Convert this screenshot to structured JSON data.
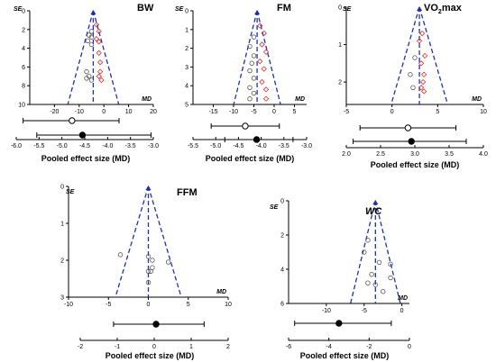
{
  "colors": {
    "funnel": "#1f2fb0",
    "axis": "#000000",
    "black_point": "#555555",
    "red_point": "#e03030"
  },
  "icons": {
    "studies_black": "circle-marker",
    "studies_red": "diamond-marker",
    "pooled": "filled-circle",
    "ci": "interval-bar"
  },
  "chart_data": [
    {
      "id": "bw",
      "type": "scatter",
      "title": "BW",
      "ylabel": "SE",
      "xlabel": "MD",
      "xlim": [
        -30,
        20
      ],
      "ylim": [
        0,
        10
      ],
      "xticks": [
        -20,
        -10,
        0,
        10,
        20
      ],
      "xtick_labels": [
        "-20",
        "-10",
        "0",
        "10",
        "20"
      ],
      "yticks": [
        0,
        2,
        4,
        6,
        8,
        10
      ],
      "ytick_labels": [
        "0",
        "2",
        "4",
        "6",
        "8",
        "10"
      ],
      "pooled_md": -4.3,
      "points_black": [
        [
          -6,
          2.6
        ],
        [
          -5,
          2.8
        ],
        [
          -6.5,
          3.2
        ],
        [
          -5,
          3.6
        ],
        [
          -7,
          6.5
        ],
        [
          -6,
          7.0
        ],
        [
          -7,
          7.2
        ],
        [
          -5,
          7.4
        ],
        [
          -5,
          2.2
        ]
      ],
      "points_red": [
        [
          -3,
          1.5
        ],
        [
          -2,
          2.2
        ],
        [
          -3,
          3.0
        ],
        [
          -2,
          3.3
        ],
        [
          -2,
          4.5
        ],
        [
          -1.5,
          5.5
        ],
        [
          -1.5,
          6.5
        ],
        [
          -2,
          7.0
        ],
        [
          -1,
          7.4
        ]
      ],
      "forest": {
        "axis_label": "Pooled effect size  (MD)",
        "xlim": [
          -6.0,
          -3.0
        ],
        "ticks": [
          -6.0,
          -5.5,
          -5.0,
          -4.5,
          -4.0,
          -3.5,
          -3.0
        ],
        "tick_labels": [
          "-6.0",
          "-5.5",
          "-5.0",
          "-4.5",
          "-4.0",
          "-3.5",
          "-3.0"
        ],
        "open": {
          "est": -4.78,
          "lo": -5.85,
          "hi": -3.75
        },
        "filled": {
          "est": -4.55,
          "lo": -5.55,
          "hi": -3.05
        }
      }
    },
    {
      "id": "fm",
      "type": "scatter",
      "title": "FM",
      "ylabel": "SE",
      "xlabel": "MD",
      "xlim": [
        -20,
        8
      ],
      "ylim": [
        0,
        5
      ],
      "xticks": [
        -15,
        -10,
        -5,
        0,
        5
      ],
      "xtick_labels": [
        "-15",
        "-10",
        "-5",
        "0",
        "5"
      ],
      "yticks": [
        0,
        1,
        2,
        3,
        4,
        5
      ],
      "ytick_labels": [
        "0",
        "1",
        "2",
        "3",
        "4",
        "5"
      ],
      "pooled_md": -4.2,
      "points_black": [
        [
          -5,
          1.4
        ],
        [
          -6,
          1.9
        ],
        [
          -5,
          2.4
        ],
        [
          -5.5,
          2.8
        ],
        [
          -6,
          3.2
        ],
        [
          -5,
          3.6
        ],
        [
          -6,
          4.1
        ],
        [
          -5,
          4.4
        ],
        [
          -6,
          4.7
        ]
      ],
      "points_red": [
        [
          -3.5,
          0.8
        ],
        [
          -2.5,
          1.2
        ],
        [
          -3,
          1.8
        ],
        [
          -2,
          2.2
        ],
        [
          -3.5,
          2.7
        ],
        [
          -2.5,
          3.1
        ],
        [
          -3,
          3.8
        ],
        [
          -2,
          4.2
        ],
        [
          -2,
          4.7
        ]
      ],
      "forest": {
        "axis_label": "Pooled effect size  (MD)",
        "xlim": [
          -5.5,
          -3.0
        ],
        "ticks": [
          -5.5,
          -5.0,
          -4.5,
          -4.0,
          -3.5,
          -3.0
        ],
        "tick_labels": [
          "-5.5",
          "-5.0",
          "-4.5",
          "-4.0",
          "-3.5",
          "-3.0"
        ],
        "open": {
          "est": -4.35,
          "lo": -5.1,
          "hi": -3.6
        },
        "filled": {
          "est": -4.1,
          "lo": -4.8,
          "hi": -3.3
        }
      }
    },
    {
      "id": "vo2",
      "type": "scatter",
      "title": "VO",
      "title_sub": "2",
      "title_after": "max",
      "ylabel": "SE",
      "xlabel": "MD",
      "xlim": [
        -5,
        10
      ],
      "ylim": [
        0,
        2.6
      ],
      "xticks": [
        -5,
        0,
        5,
        10
      ],
      "xtick_labels": [
        "-5",
        "0",
        "5",
        "10"
      ],
      "yticks": [
        0,
        1,
        2
      ],
      "ytick_labels": [
        "0",
        "1",
        "2"
      ],
      "pooled_md": 3.0,
      "points_black": [
        [
          2.3,
          2.15
        ],
        [
          2.5,
          1.35
        ],
        [
          2.0,
          1.8
        ]
      ],
      "points_red": [
        [
          3.3,
          0.7
        ],
        [
          3.0,
          0.9
        ],
        [
          3.6,
          1.3
        ],
        [
          3.2,
          1.5
        ],
        [
          3.5,
          1.8
        ],
        [
          3.4,
          2.0
        ],
        [
          3.2,
          2.15
        ],
        [
          3.5,
          2.25
        ]
      ],
      "forest": {
        "axis_label": "Pooled effect size  (MD)",
        "xlim": [
          2.0,
          4.0
        ],
        "ticks": [
          2.0,
          2.5,
          3.0,
          3.5,
          4.0
        ],
        "tick_labels": [
          "2.0",
          "2.5",
          "3.0",
          "3.5",
          "4.0"
        ],
        "open": {
          "est": 2.9,
          "lo": 2.2,
          "hi": 3.6
        },
        "filled": {
          "est": 2.95,
          "lo": 2.1,
          "hi": 3.75
        }
      }
    },
    {
      "id": "ffm",
      "type": "scatter",
      "title": "FFM",
      "ylabel": "SE",
      "xlabel": "MD",
      "xlim": [
        -10,
        10
      ],
      "ylim": [
        0,
        3
      ],
      "xticks": [
        -10,
        -5,
        0,
        5,
        10
      ],
      "xtick_labels": [
        "-10",
        "-5",
        "0",
        "5",
        "10"
      ],
      "yticks": [
        0,
        1,
        2,
        3
      ],
      "ytick_labels": [
        "0",
        "1",
        "2",
        "3"
      ],
      "pooled_md": 0,
      "points_black": [
        [
          -3.5,
          1.85
        ],
        [
          0,
          1.9
        ],
        [
          0,
          2.3
        ],
        [
          0.5,
          2.2
        ],
        [
          0.3,
          2.3
        ],
        [
          2.5,
          2.05
        ],
        [
          0,
          2.6
        ],
        [
          0.5,
          2.0
        ]
      ],
      "points_red": [],
      "forest": {
        "axis_label": "Pooled effect size  (MD)",
        "xlim": [
          -2,
          2
        ],
        "ticks": [
          -2,
          -1,
          0,
          1,
          2
        ],
        "tick_labels": [
          "-2",
          "-1",
          "0",
          "1",
          "2"
        ],
        "open": null,
        "filled": {
          "est": 0.05,
          "lo": -1.1,
          "hi": 1.35
        }
      }
    },
    {
      "id": "wc",
      "type": "scatter",
      "title": "WC",
      "title_italic": true,
      "ylabel": "SE",
      "xlabel": "MD",
      "xlim": [
        -15,
        1
      ],
      "ylim": [
        0,
        6
      ],
      "xticks": [
        -10,
        -5,
        0
      ],
      "xtick_labels": [
        "-10",
        "-5",
        "0"
      ],
      "yticks": [
        0,
        2,
        4,
        6
      ],
      "ytick_labels": [
        "0",
        "2",
        "4",
        "6"
      ],
      "pooled_md": -3.5,
      "points_black": [
        [
          -4.5,
          2.3
        ],
        [
          -5,
          3.0
        ],
        [
          -3,
          3.6
        ],
        [
          -4,
          4.3
        ],
        [
          -1.5,
          3.7
        ],
        [
          -1.5,
          4.5
        ],
        [
          -3.5,
          4.9
        ],
        [
          -4.5,
          4.8
        ],
        [
          -2.5,
          5.3
        ]
      ],
      "points_red": [],
      "forest": {
        "axis_label": "Pooled effect size  (MD)",
        "xlim": [
          -6,
          0
        ],
        "ticks": [
          -6,
          -4,
          -2,
          0
        ],
        "tick_labels": [
          "-6",
          "-4",
          "-2",
          "0"
        ],
        "open": null,
        "filled": {
          "est": -3.5,
          "lo": -5.7,
          "hi": -0.9
        }
      }
    }
  ]
}
